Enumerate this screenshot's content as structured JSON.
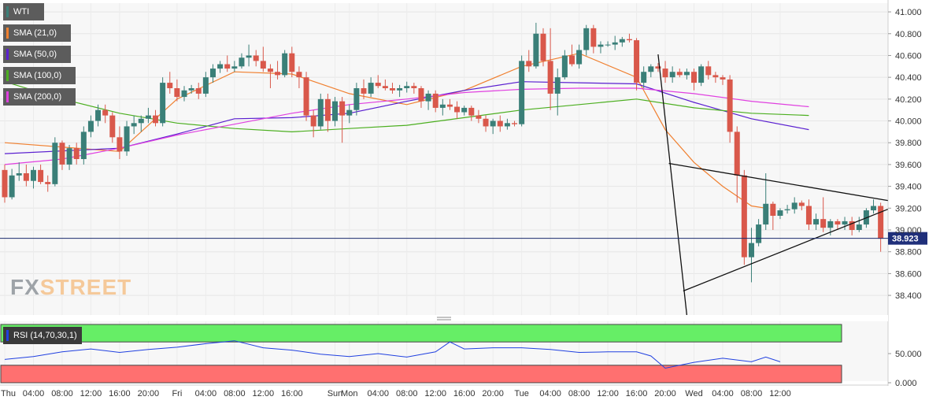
{
  "legend": [
    {
      "label": "WTI",
      "color": "#3a7f78"
    },
    {
      "label": "SMA (21,0)",
      "color": "#f08030"
    },
    {
      "label": "SMA (50,0)",
      "color": "#5a1fd0"
    },
    {
      "label": "SMA (100,0)",
      "color": "#4caf20"
    },
    {
      "label": "SMA (200,0)",
      "color": "#e040e0"
    }
  ],
  "logo": {
    "fx": "FX",
    "street": "STREET",
    "colors": {
      "fx": "#9ea3a8",
      "street": "#f5c99a"
    }
  },
  "rsi_label": "RSI (14,70,30,1)",
  "colors": {
    "bull": "#3a7f78",
    "bear": "#d9584b",
    "sma21": "#f08030",
    "sma50": "#5a1fd0",
    "sma100": "#4caf20",
    "sma200": "#e040e0",
    "rsi_line": "#2040e0",
    "overbought": "#66ee66",
    "oversold": "#ff7070"
  },
  "chart_data": [
    {
      "type": "candlestick",
      "instrument": "WTI",
      "timeframe_hours": 1,
      "y_range": [
        38.22,
        41.08
      ],
      "y_ticks": [
        "41.000",
        "40.800",
        "40.600",
        "40.400",
        "40.200",
        "40.000",
        "39.800",
        "39.600",
        "39.400",
        "39.200",
        "39.000",
        "38.800",
        "38.600",
        "38.400"
      ],
      "x_ticks": [
        "Thu",
        "04:00",
        "08:00",
        "12:00",
        "16:00",
        "20:00",
        "Fri",
        "04:00",
        "08:00",
        "12:00",
        "16:00",
        "Sun",
        "Mon",
        "04:00",
        "08:00",
        "12:00",
        "16:00",
        "20:00",
        "Tue",
        "04:00",
        "08:00",
        "12:00",
        "16:00",
        "20:00",
        "Wed",
        "04:00",
        "08:00",
        "12:00"
      ],
      "x_tick_hours": [
        0,
        4,
        8,
        12,
        16,
        20,
        24,
        28,
        32,
        36,
        40,
        46,
        48,
        52,
        56,
        60,
        64,
        68,
        72,
        76,
        80,
        84,
        88,
        92,
        96,
        100,
        104,
        108
      ],
      "last_price": "38.923",
      "candles": [
        {
          "o": 39.55,
          "h": 39.6,
          "l": 39.25,
          "c": 39.3
        },
        {
          "o": 39.3,
          "h": 39.56,
          "l": 39.28,
          "c": 39.5
        },
        {
          "o": 39.5,
          "h": 39.62,
          "l": 39.45,
          "c": 39.52
        },
        {
          "o": 39.52,
          "h": 39.6,
          "l": 39.4,
          "c": 39.45
        },
        {
          "o": 39.45,
          "h": 39.58,
          "l": 39.38,
          "c": 39.55
        },
        {
          "o": 39.55,
          "h": 39.6,
          "l": 39.42,
          "c": 39.44
        },
        {
          "o": 39.44,
          "h": 39.5,
          "l": 39.35,
          "c": 39.42
        },
        {
          "o": 39.42,
          "h": 39.85,
          "l": 39.4,
          "c": 39.8
        },
        {
          "o": 39.8,
          "h": 39.82,
          "l": 39.55,
          "c": 39.6
        },
        {
          "o": 39.6,
          "h": 39.78,
          "l": 39.55,
          "c": 39.75
        },
        {
          "o": 39.75,
          "h": 39.8,
          "l": 39.6,
          "c": 39.65
        },
        {
          "o": 39.65,
          "h": 39.95,
          "l": 39.6,
          "c": 39.9
        },
        {
          "o": 39.9,
          "h": 40.05,
          "l": 39.85,
          "c": 40.0
        },
        {
          "o": 40.0,
          "h": 40.15,
          "l": 39.95,
          "c": 40.1
        },
        {
          "o": 40.1,
          "h": 40.15,
          "l": 39.98,
          "c": 40.05
        },
        {
          "o": 40.05,
          "h": 40.08,
          "l": 39.8,
          "c": 39.85
        },
        {
          "o": 39.85,
          "h": 39.95,
          "l": 39.65,
          "c": 39.72
        },
        {
          "o": 39.72,
          "h": 40.0,
          "l": 39.68,
          "c": 39.95
        },
        {
          "o": 39.95,
          "h": 40.05,
          "l": 39.88,
          "c": 39.98
        },
        {
          "o": 39.98,
          "h": 40.05,
          "l": 39.9,
          "c": 40.02
        },
        {
          "o": 40.02,
          "h": 40.12,
          "l": 39.98,
          "c": 40.05
        },
        {
          "o": 40.05,
          "h": 40.1,
          "l": 39.95,
          "c": 39.98
        },
        {
          "o": 39.98,
          "h": 40.4,
          "l": 39.95,
          "c": 40.35
        },
        {
          "o": 40.35,
          "h": 40.45,
          "l": 40.25,
          "c": 40.3
        },
        {
          "o": 40.3,
          "h": 40.38,
          "l": 40.18,
          "c": 40.22
        },
        {
          "o": 40.22,
          "h": 40.32,
          "l": 40.18,
          "c": 40.28
        },
        {
          "o": 40.28,
          "h": 40.33,
          "l": 40.25,
          "c": 40.3
        },
        {
          "o": 40.3,
          "h": 40.35,
          "l": 40.2,
          "c": 40.25
        },
        {
          "o": 40.25,
          "h": 40.45,
          "l": 40.22,
          "c": 40.4
        },
        {
          "o": 40.4,
          "h": 40.52,
          "l": 40.35,
          "c": 40.48
        },
        {
          "o": 40.48,
          "h": 40.55,
          "l": 40.44,
          "c": 40.52
        },
        {
          "o": 40.52,
          "h": 40.6,
          "l": 40.45,
          "c": 40.48
        },
        {
          "o": 40.48,
          "h": 40.55,
          "l": 40.45,
          "c": 40.5
        },
        {
          "o": 40.5,
          "h": 40.62,
          "l": 40.48,
          "c": 40.58
        },
        {
          "o": 40.58,
          "h": 40.7,
          "l": 40.5,
          "c": 40.6
        },
        {
          "o": 40.6,
          "h": 40.65,
          "l": 40.5,
          "c": 40.55
        },
        {
          "o": 40.55,
          "h": 40.68,
          "l": 40.45,
          "c": 40.48
        },
        {
          "o": 40.48,
          "h": 40.52,
          "l": 40.3,
          "c": 40.45
        },
        {
          "o": 40.45,
          "h": 40.55,
          "l": 40.38,
          "c": 40.42
        },
        {
          "o": 40.42,
          "h": 40.65,
          "l": 40.4,
          "c": 40.62
        },
        {
          "o": 40.62,
          "h": 40.68,
          "l": 40.4,
          "c": 40.45
        },
        {
          "o": 40.45,
          "h": 40.5,
          "l": 40.3,
          "c": 40.4
        },
        {
          "o": 40.4,
          "h": 40.45,
          "l": 40.0,
          "c": 40.05
        },
        {
          "o": 40.05,
          "h": 40.1,
          "l": 39.85,
          "c": 39.95
        },
        {
          "o": 39.95,
          "h": 40.25,
          "l": 39.92,
          "c": 40.2
        },
        {
          "o": 40.2,
          "h": 40.25,
          "l": 39.9,
          "c": 40.0
        },
        {
          "o": 40.0,
          "h": 40.22,
          "l": 39.95,
          "c": 40.18
        },
        {
          "o": 40.18,
          "h": 40.22,
          "l": 39.8,
          "c": 40.05
        },
        {
          "o": 40.05,
          "h": 40.15,
          "l": 39.98,
          "c": 40.1
        },
        {
          "o": 40.1,
          "h": 40.35,
          "l": 40.05,
          "c": 40.3
        },
        {
          "o": 40.3,
          "h": 40.38,
          "l": 40.2,
          "c": 40.25
        },
        {
          "o": 40.25,
          "h": 40.4,
          "l": 40.22,
          "c": 40.35
        },
        {
          "o": 40.35,
          "h": 40.42,
          "l": 40.3,
          "c": 40.32
        },
        {
          "o": 40.32,
          "h": 40.38,
          "l": 40.28,
          "c": 40.3
        },
        {
          "o": 40.3,
          "h": 40.35,
          "l": 40.25,
          "c": 40.28
        },
        {
          "o": 40.28,
          "h": 40.33,
          "l": 40.22,
          "c": 40.3
        },
        {
          "o": 40.3,
          "h": 40.36,
          "l": 40.26,
          "c": 40.32
        },
        {
          "o": 40.32,
          "h": 40.35,
          "l": 40.25,
          "c": 40.3
        },
        {
          "o": 40.3,
          "h": 40.32,
          "l": 40.12,
          "c": 40.18
        },
        {
          "o": 40.18,
          "h": 40.28,
          "l": 40.1,
          "c": 40.25
        },
        {
          "o": 40.25,
          "h": 40.28,
          "l": 40.08,
          "c": 40.12
        },
        {
          "o": 40.12,
          "h": 40.2,
          "l": 40.05,
          "c": 40.15
        },
        {
          "o": 40.15,
          "h": 40.2,
          "l": 40.1,
          "c": 40.13
        },
        {
          "o": 40.13,
          "h": 40.18,
          "l": 40.02,
          "c": 40.08
        },
        {
          "o": 40.08,
          "h": 40.14,
          "l": 40.05,
          "c": 40.12
        },
        {
          "o": 40.12,
          "h": 40.14,
          "l": 40.0,
          "c": 40.05
        },
        {
          "o": 40.05,
          "h": 40.1,
          "l": 39.98,
          "c": 40.02
        },
        {
          "o": 40.02,
          "h": 40.05,
          "l": 39.9,
          "c": 39.95
        },
        {
          "o": 39.95,
          "h": 40.02,
          "l": 39.88,
          "c": 40.0
        },
        {
          "o": 40.0,
          "h": 40.05,
          "l": 39.9,
          "c": 39.95
        },
        {
          "o": 39.95,
          "h": 40.02,
          "l": 39.92,
          "c": 39.98
        },
        {
          "o": 39.98,
          "h": 40.0,
          "l": 39.95,
          "c": 39.97
        },
        {
          "o": 39.97,
          "h": 40.6,
          "l": 39.95,
          "c": 40.55
        },
        {
          "o": 40.55,
          "h": 40.65,
          "l": 40.45,
          "c": 40.5
        },
        {
          "o": 40.5,
          "h": 40.9,
          "l": 40.48,
          "c": 40.8
        },
        {
          "o": 40.8,
          "h": 40.85,
          "l": 40.5,
          "c": 40.55
        },
        {
          "o": 40.55,
          "h": 40.85,
          "l": 40.1,
          "c": 40.25
        },
        {
          "o": 40.25,
          "h": 40.48,
          "l": 40.05,
          "c": 40.4
        },
        {
          "o": 40.4,
          "h": 40.65,
          "l": 40.38,
          "c": 40.6
        },
        {
          "o": 40.6,
          "h": 40.7,
          "l": 40.5,
          "c": 40.52
        },
        {
          "o": 40.52,
          "h": 40.7,
          "l": 40.48,
          "c": 40.65
        },
        {
          "o": 40.65,
          "h": 40.88,
          "l": 40.6,
          "c": 40.85
        },
        {
          "o": 40.85,
          "h": 40.88,
          "l": 40.62,
          "c": 40.68
        },
        {
          "o": 40.68,
          "h": 40.73,
          "l": 40.62,
          "c": 40.7
        },
        {
          "o": 40.7,
          "h": 40.73,
          "l": 40.68,
          "c": 40.7
        },
        {
          "o": 40.7,
          "h": 40.78,
          "l": 40.65,
          "c": 40.72
        },
        {
          "o": 40.72,
          "h": 40.77,
          "l": 40.68,
          "c": 40.75
        },
        {
          "o": 40.75,
          "h": 40.8,
          "l": 40.72,
          "c": 40.74
        },
        {
          "o": 40.74,
          "h": 40.76,
          "l": 40.28,
          "c": 40.35
        },
        {
          "o": 40.35,
          "h": 40.5,
          "l": 40.3,
          "c": 40.45
        },
        {
          "o": 40.45,
          "h": 40.52,
          "l": 40.4,
          "c": 40.5
        },
        {
          "o": 40.5,
          "h": 40.53,
          "l": 40.45,
          "c": 40.48
        },
        {
          "o": 40.48,
          "h": 40.55,
          "l": 40.35,
          "c": 40.4
        },
        {
          "o": 40.4,
          "h": 40.5,
          "l": 40.35,
          "c": 40.45
        },
        {
          "o": 40.45,
          "h": 40.48,
          "l": 40.4,
          "c": 40.42
        },
        {
          "o": 40.42,
          "h": 40.48,
          "l": 40.38,
          "c": 40.45
        },
        {
          "o": 40.45,
          "h": 40.48,
          "l": 40.28,
          "c": 40.35
        },
        {
          "o": 40.35,
          "h": 40.52,
          "l": 40.32,
          "c": 40.5
        },
        {
          "o": 40.5,
          "h": 40.55,
          "l": 40.38,
          "c": 40.42
        },
        {
          "o": 40.42,
          "h": 40.45,
          "l": 40.35,
          "c": 40.4
        },
        {
          "o": 40.4,
          "h": 40.42,
          "l": 40.33,
          "c": 40.38
        },
        {
          "o": 40.38,
          "h": 40.42,
          "l": 39.8,
          "c": 39.9
        },
        {
          "o": 39.9,
          "h": 39.95,
          "l": 39.25,
          "c": 39.5
        },
        {
          "o": 39.5,
          "h": 39.55,
          "l": 38.68,
          "c": 38.75
        },
        {
          "o": 38.75,
          "h": 39.02,
          "l": 38.52,
          "c": 38.88
        },
        {
          "o": 38.88,
          "h": 39.1,
          "l": 38.85,
          "c": 39.05
        },
        {
          "o": 39.05,
          "h": 39.52,
          "l": 39.0,
          "c": 39.24
        },
        {
          "o": 39.24,
          "h": 39.26,
          "l": 39.0,
          "c": 39.13
        },
        {
          "o": 39.13,
          "h": 39.2,
          "l": 39.1,
          "c": 39.18
        },
        {
          "o": 39.18,
          "h": 39.23,
          "l": 39.15,
          "c": 39.19
        },
        {
          "o": 39.19,
          "h": 39.3,
          "l": 39.15,
          "c": 39.25
        },
        {
          "o": 39.25,
          "h": 39.27,
          "l": 39.18,
          "c": 39.22
        },
        {
          "o": 39.22,
          "h": 39.28,
          "l": 39.0,
          "c": 39.05
        },
        {
          "o": 39.05,
          "h": 39.15,
          "l": 39.0,
          "c": 39.1
        },
        {
          "o": 39.1,
          "h": 39.3,
          "l": 38.98,
          "c": 39.02
        },
        {
          "o": 39.02,
          "h": 39.1,
          "l": 38.95,
          "c": 39.08
        },
        {
          "o": 39.08,
          "h": 39.1,
          "l": 39.0,
          "c": 39.05
        },
        {
          "o": 39.05,
          "h": 39.12,
          "l": 39.0,
          "c": 39.08
        },
        {
          "o": 39.08,
          "h": 39.12,
          "l": 38.95,
          "c": 39.0
        },
        {
          "o": 39.0,
          "h": 39.12,
          "l": 38.98,
          "c": 39.05
        },
        {
          "o": 39.05,
          "h": 39.2,
          "l": 39.02,
          "c": 39.18
        },
        {
          "o": 39.18,
          "h": 39.28,
          "l": 39.15,
          "c": 39.22
        },
        {
          "o": 39.22,
          "h": 39.25,
          "l": 38.8,
          "c": 38.92
        }
      ],
      "sma": [
        {
          "name": "SMA (21,0)",
          "color_key": "sma21",
          "hours": [
            0,
            16,
            24,
            32,
            40,
            48,
            56,
            64,
            72,
            80,
            88,
            92,
            96,
            100,
            104,
            106
          ],
          "values": [
            39.8,
            39.72,
            40.2,
            40.45,
            40.43,
            40.25,
            40.15,
            40.28,
            40.5,
            40.62,
            40.4,
            39.92,
            39.62,
            39.4,
            39.22,
            39.2
          ]
        },
        {
          "name": "SMA (50,0)",
          "color_key": "sma50",
          "hours": [
            0,
            16,
            24,
            32,
            40,
            48,
            56,
            64,
            72,
            80,
            88,
            96,
            104,
            112
          ],
          "values": [
            39.7,
            39.75,
            39.88,
            40.02,
            40.03,
            40.07,
            40.18,
            40.28,
            40.36,
            40.35,
            40.34,
            40.17,
            40.02,
            39.92
          ]
        },
        {
          "name": "SMA (100,0)",
          "color_key": "sma100",
          "hours": [
            0,
            8,
            16,
            24,
            32,
            40,
            48,
            56,
            64,
            72,
            80,
            88,
            96,
            104,
            112
          ],
          "values": [
            40.36,
            40.2,
            40.07,
            39.98,
            39.93,
            39.9,
            39.93,
            39.96,
            40.03,
            40.1,
            40.15,
            40.2,
            40.12,
            40.07,
            40.05
          ]
        },
        {
          "name": "SMA (200,0)",
          "color_key": "sma200",
          "hours": [
            0,
            8,
            16,
            24,
            32,
            40,
            48,
            56,
            64,
            72,
            80,
            88,
            96,
            104,
            112
          ],
          "values": [
            39.6,
            39.65,
            39.75,
            39.87,
            39.97,
            40.07,
            40.15,
            40.2,
            40.26,
            40.29,
            40.3,
            40.3,
            40.25,
            40.18,
            40.13
          ]
        }
      ]
    },
    {
      "type": "line",
      "indicator": "RSI (14,70,30,1)",
      "y_range": [
        0,
        100
      ],
      "y_ticks": [
        "50.000",
        "0.000"
      ],
      "hours": [
        0,
        4,
        8,
        12,
        16,
        20,
        24,
        28,
        32,
        36,
        40,
        44,
        48,
        52,
        56,
        60,
        62,
        64,
        68,
        72,
        76,
        80,
        84,
        88,
        90,
        92,
        96,
        100,
        104,
        106,
        108
      ],
      "values": [
        40,
        45,
        53,
        58,
        52,
        57,
        61,
        67,
        72,
        60,
        56,
        49,
        45,
        50,
        44,
        53,
        70,
        58,
        60,
        60,
        57,
        52,
        53,
        53,
        46,
        25,
        35,
        42,
        36,
        44,
        36
      ]
    }
  ]
}
